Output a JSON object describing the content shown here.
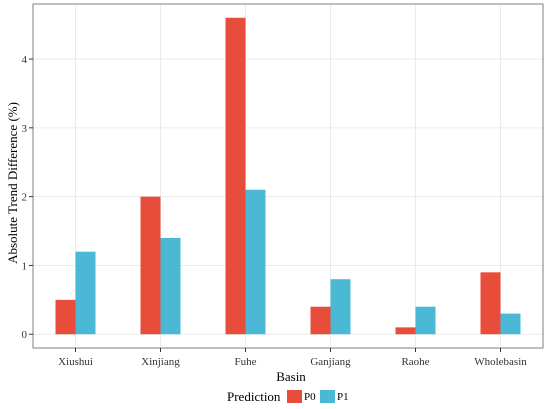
{
  "colors": {
    "P0": "#E84C3A",
    "P1": "#4BB9D6",
    "grid": "#ebebeb",
    "panel_border": "#7f7f7f"
  },
  "chart_data": {
    "type": "bar",
    "xlabel": "Basin",
    "ylabel": "Absolute Trend Difference (%)",
    "categories": [
      "Xiushui",
      "Xinjiang",
      "Fuhe",
      "Ganjiang",
      "Raohe",
      "Wholebasin"
    ],
    "series": [
      {
        "name": "P0",
        "values": [
          0.5,
          2.0,
          4.6,
          0.4,
          0.1,
          0.9
        ]
      },
      {
        "name": "P1",
        "values": [
          1.2,
          1.4,
          2.1,
          0.8,
          0.4,
          0.3
        ]
      }
    ],
    "ylim": [
      -0.2,
      4.8
    ],
    "yticks": [
      0,
      1,
      2,
      3,
      4
    ],
    "grid": true,
    "legend": {
      "title": "Prediction",
      "position": "bottom"
    }
  }
}
